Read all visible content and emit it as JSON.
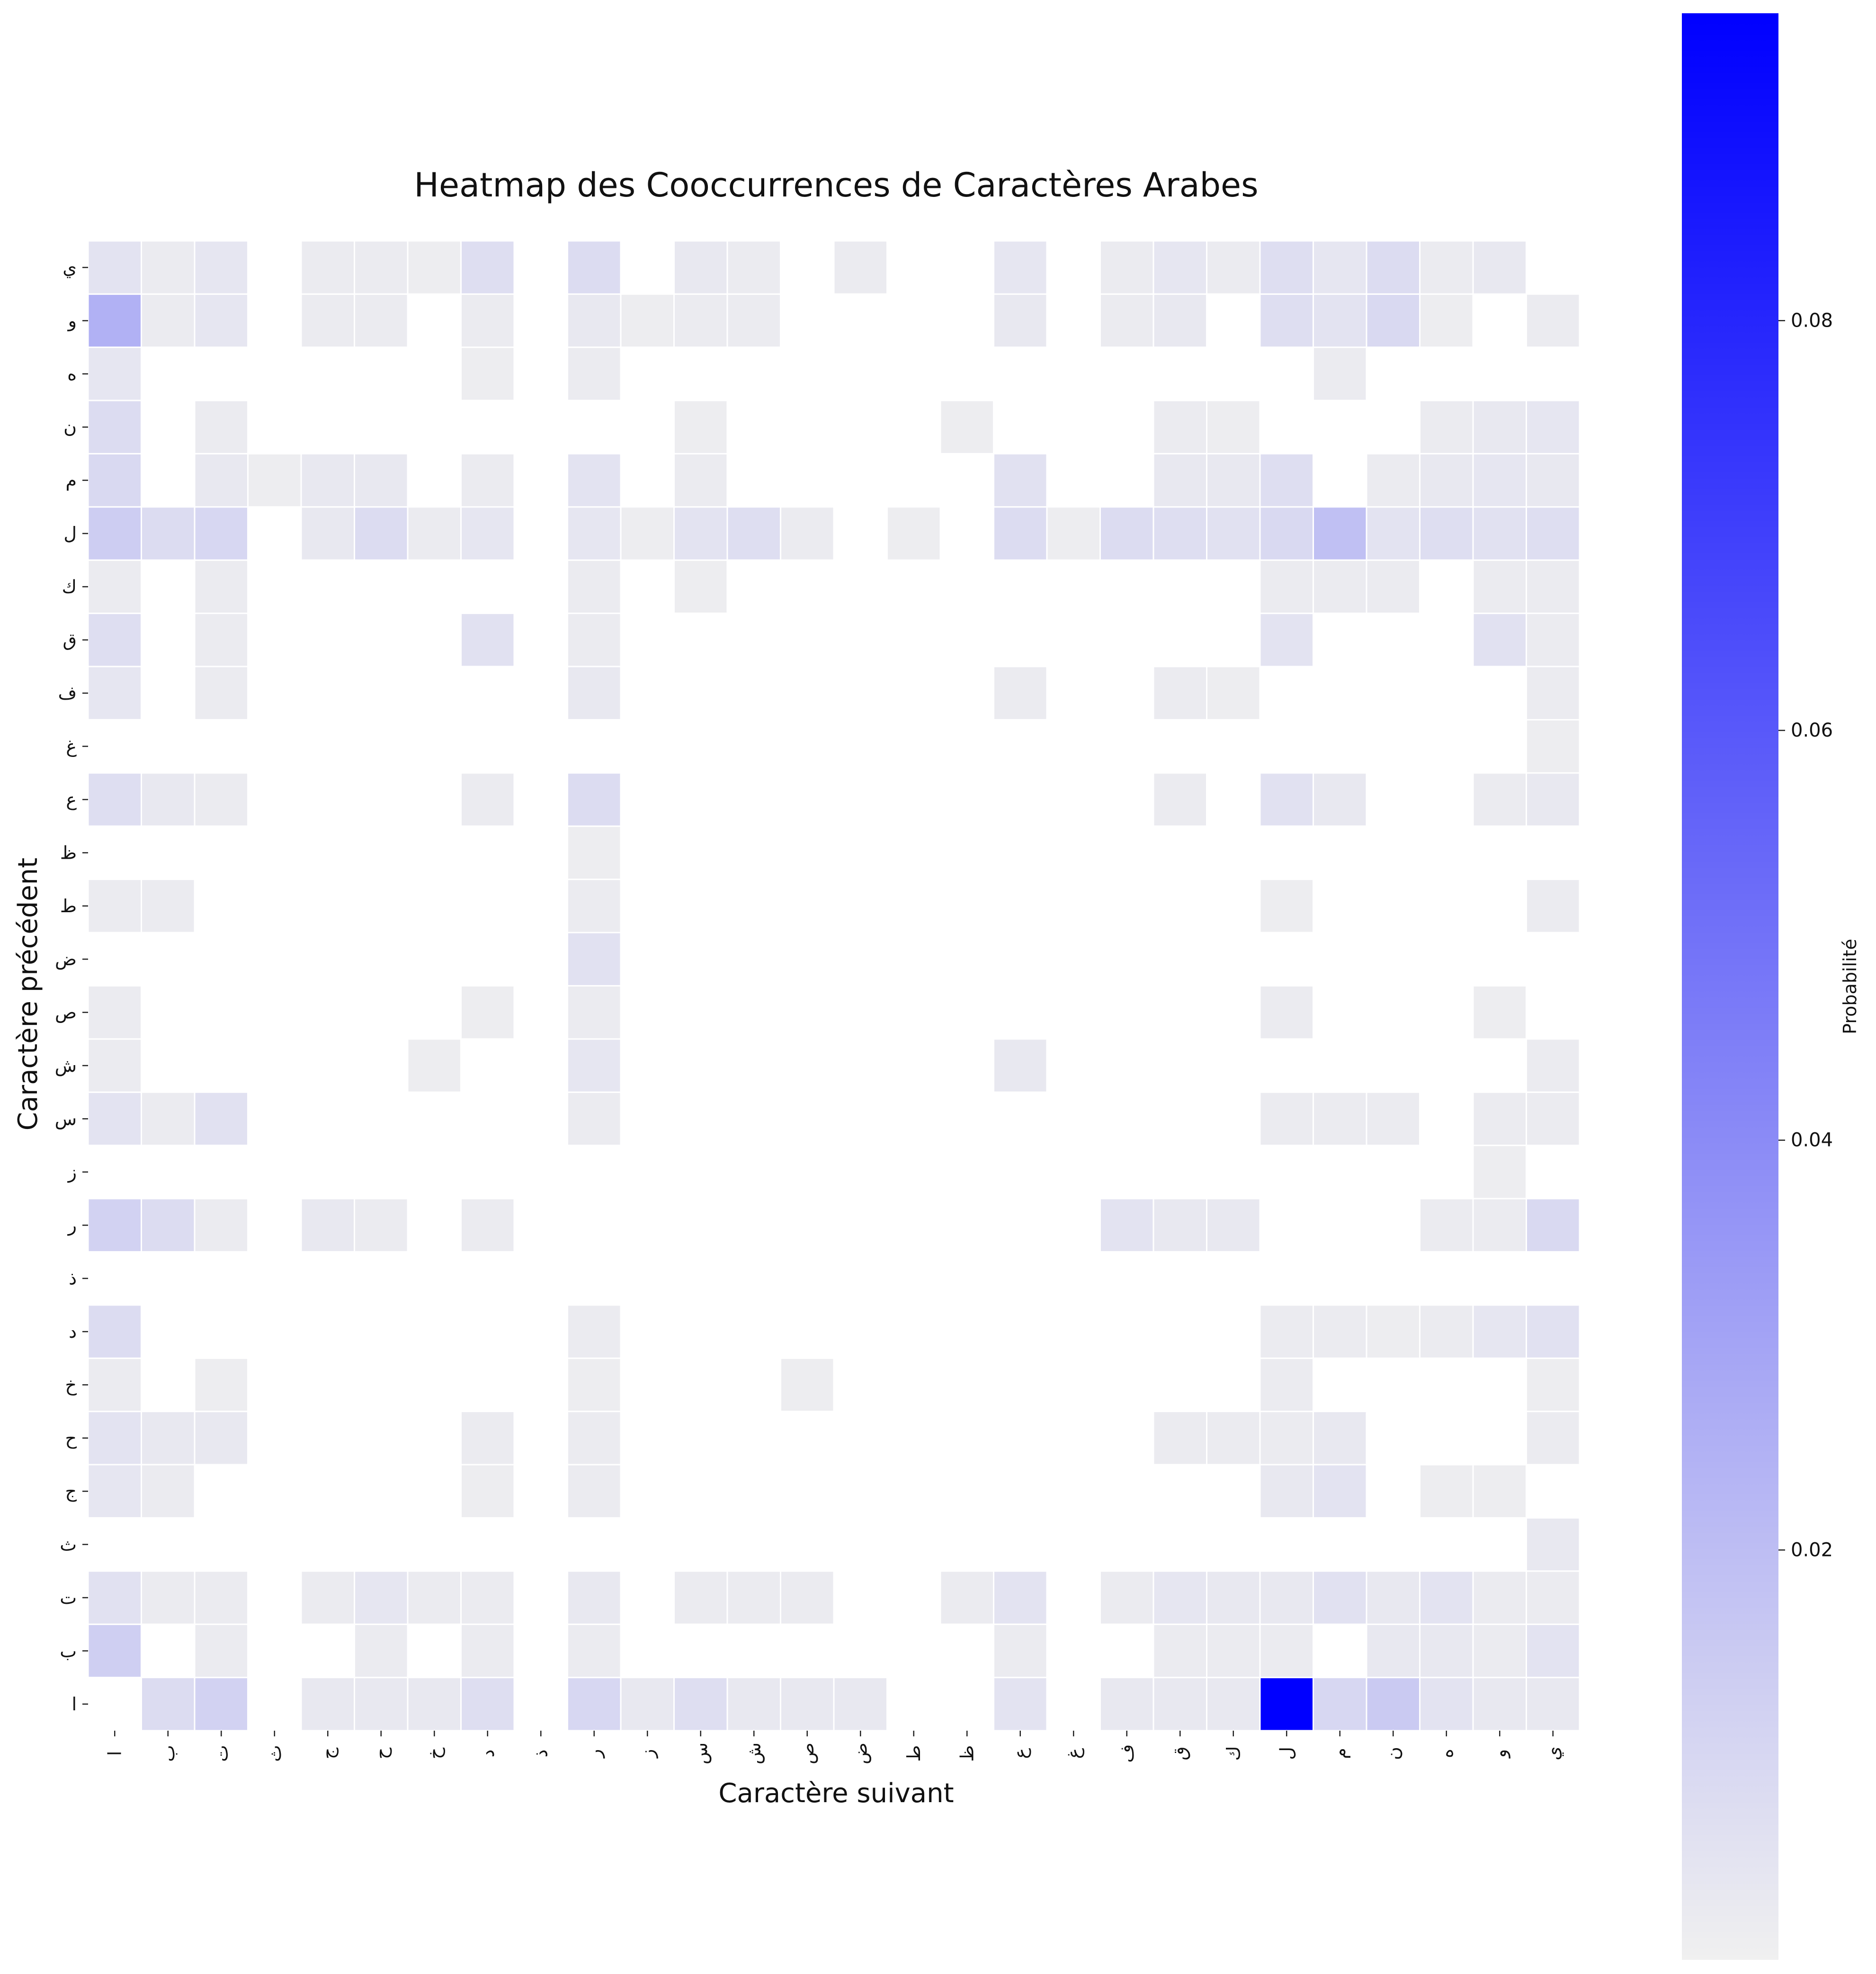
{
  "chart_data": {
    "type": "heatmap",
    "title": "Heatmap des Cooccurrences de Caractères Arabes",
    "xlabel": "Caractère suivant",
    "ylabel": "Caractère précédent",
    "x_categories": [
      "ا",
      "ب",
      "ت",
      "ث",
      "ج",
      "ح",
      "خ",
      "د",
      "ذ",
      "ر",
      "ز",
      "س",
      "ش",
      "ص",
      "ض",
      "ط",
      "ظ",
      "ع",
      "غ",
      "ف",
      "ق",
      "ك",
      "ل",
      "م",
      "ن",
      "ه",
      "و",
      "ي"
    ],
    "y_categories": [
      "ا",
      "ب",
      "ت",
      "ث",
      "ج",
      "ح",
      "خ",
      "د",
      "ذ",
      "ر",
      "ز",
      "س",
      "ش",
      "ص",
      "ض",
      "ط",
      "ظ",
      "ع",
      "غ",
      "ف",
      "ق",
      "ك",
      "ل",
      "م",
      "ن",
      "ه",
      "و",
      "ي"
    ],
    "value_note": "rows follow y_categories (bottom to top), columns follow x_categories (left to right); 0 = no cooccurrence",
    "values": [
      [
        0,
        0.008,
        0.012,
        0,
        0.003,
        0.003,
        0.003,
        0.007,
        0,
        0.01,
        0.003,
        0.007,
        0.003,
        0.003,
        0.003,
        0,
        0,
        0.005,
        0,
        0.003,
        0.003,
        0.003,
        0.095,
        0.01,
        0.015,
        0.005,
        0.003,
        0.003
      ],
      [
        0.013,
        0,
        0.002,
        0,
        0,
        0.002,
        0,
        0.002,
        0,
        0.002,
        0,
        0,
        0,
        0,
        0,
        0,
        0,
        0.002,
        0,
        0,
        0.002,
        0.002,
        0.002,
        0,
        0.003,
        0.003,
        0.002,
        0.005
      ],
      [
        0.006,
        0.002,
        0.002,
        0,
        0.002,
        0.004,
        0.002,
        0.002,
        0,
        0.003,
        0,
        0.002,
        0.002,
        0.002,
        0,
        0,
        0.002,
        0.005,
        0,
        0.002,
        0.004,
        0.003,
        0.003,
        0.006,
        0.003,
        0.005,
        0.002,
        0.002
      ],
      [
        0,
        0,
        0,
        0,
        0,
        0,
        0,
        0,
        0,
        0,
        0,
        0,
        0,
        0,
        0,
        0,
        0,
        0,
        0,
        0,
        0,
        0,
        0,
        0,
        0,
        0,
        0,
        0.003
      ],
      [
        0.004,
        0.002,
        0,
        0,
        0,
        0,
        0,
        0.001,
        0,
        0.002,
        0,
        0,
        0,
        0,
        0,
        0,
        0,
        0,
        0,
        0,
        0,
        0,
        0.003,
        0.005,
        0,
        0.001,
        0.001,
        0
      ],
      [
        0.005,
        0.003,
        0.003,
        0,
        0,
        0,
        0,
        0.002,
        0,
        0.002,
        0,
        0,
        0,
        0,
        0,
        0,
        0,
        0,
        0,
        0,
        0.002,
        0.002,
        0.002,
        0.003,
        0,
        0,
        0,
        0.002
      ],
      [
        0.002,
        0,
        0.001,
        0,
        0,
        0,
        0,
        0,
        0,
        0.001,
        0,
        0,
        0,
        0.001,
        0,
        0,
        0,
        0,
        0,
        0,
        0,
        0,
        0.002,
        0,
        0,
        0,
        0,
        0.001
      ],
      [
        0.008,
        0,
        0,
        0,
        0,
        0,
        0,
        0,
        0,
        0.002,
        0,
        0,
        0,
        0,
        0,
        0,
        0,
        0,
        0,
        0,
        0,
        0,
        0.002,
        0.002,
        0.001,
        0.002,
        0.004,
        0.006
      ],
      [
        0,
        0,
        0,
        0,
        0,
        0,
        0,
        0,
        0,
        0,
        0,
        0,
        0,
        0,
        0,
        0,
        0,
        0,
        0,
        0,
        0,
        0,
        0,
        0,
        0,
        0,
        0,
        0
      ],
      [
        0.012,
        0.008,
        0.002,
        0,
        0.003,
        0.002,
        0,
        0.002,
        0,
        0,
        0,
        0,
        0,
        0,
        0,
        0,
        0,
        0,
        0,
        0.005,
        0.003,
        0.003,
        0,
        0,
        0,
        0.002,
        0.002,
        0.009
      ],
      [
        0,
        0,
        0,
        0,
        0,
        0,
        0,
        0,
        0,
        0,
        0,
        0,
        0,
        0,
        0,
        0,
        0,
        0,
        0,
        0,
        0,
        0,
        0,
        0,
        0,
        0,
        0.001,
        0
      ],
      [
        0.005,
        0.002,
        0.006,
        0,
        0,
        0,
        0,
        0,
        0,
        0.002,
        0,
        0,
        0,
        0,
        0,
        0,
        0,
        0,
        0,
        0,
        0,
        0,
        0.002,
        0.002,
        0.002,
        0,
        0.002,
        0.002
      ],
      [
        0.002,
        0,
        0,
        0,
        0,
        0,
        0.001,
        0,
        0,
        0.004,
        0,
        0,
        0,
        0,
        0,
        0,
        0,
        0.003,
        0,
        0,
        0,
        0,
        0,
        0,
        0,
        0,
        0,
        0.002
      ],
      [
        0.002,
        0,
        0,
        0,
        0,
        0,
        0,
        0.001,
        0,
        0.002,
        0,
        0,
        0,
        0,
        0,
        0,
        0,
        0,
        0,
        0,
        0,
        0,
        0.002,
        0,
        0,
        0,
        0.001,
        0
      ],
      [
        0,
        0,
        0,
        0,
        0,
        0,
        0,
        0,
        0,
        0.006,
        0,
        0,
        0,
        0,
        0,
        0,
        0,
        0,
        0,
        0,
        0,
        0,
        0,
        0,
        0,
        0,
        0,
        0
      ],
      [
        0.002,
        0.002,
        0,
        0,
        0,
        0,
        0,
        0,
        0,
        0.002,
        0,
        0,
        0,
        0,
        0,
        0,
        0,
        0,
        0,
        0,
        0,
        0,
        0.001,
        0,
        0,
        0,
        0,
        0.002
      ],
      [
        0,
        0,
        0,
        0,
        0,
        0,
        0,
        0,
        0,
        0.001,
        0,
        0,
        0,
        0,
        0,
        0,
        0,
        0,
        0,
        0,
        0,
        0,
        0,
        0,
        0,
        0,
        0,
        0
      ],
      [
        0.007,
        0.003,
        0.002,
        0,
        0,
        0,
        0,
        0.002,
        0,
        0.008,
        0,
        0,
        0,
        0,
        0,
        0,
        0,
        0,
        0,
        0,
        0.002,
        0,
        0.006,
        0.003,
        0,
        0,
        0.002,
        0.003
      ],
      [
        0,
        0,
        0,
        0,
        0,
        0,
        0,
        0,
        0,
        0,
        0,
        0,
        0,
        0,
        0,
        0,
        0,
        0,
        0,
        0,
        0,
        0,
        0,
        0,
        0,
        0,
        0,
        0.001
      ],
      [
        0.004,
        0,
        0.002,
        0,
        0,
        0,
        0,
        0,
        0,
        0.003,
        0,
        0,
        0,
        0,
        0,
        0,
        0,
        0.002,
        0,
        0,
        0.002,
        0.001,
        0,
        0,
        0,
        0,
        0,
        0.002
      ],
      [
        0.007,
        0,
        0.002,
        0,
        0,
        0,
        0,
        0.006,
        0,
        0.002,
        0,
        0,
        0,
        0,
        0,
        0,
        0,
        0,
        0,
        0,
        0,
        0,
        0.005,
        0,
        0,
        0,
        0.006,
        0.002
      ],
      [
        0.002,
        0,
        0.002,
        0,
        0,
        0,
        0,
        0,
        0,
        0.002,
        0,
        0.001,
        0,
        0,
        0,
        0,
        0,
        0,
        0,
        0,
        0,
        0,
        0.002,
        0.002,
        0.002,
        0,
        0.002,
        0.002
      ],
      [
        0.014,
        0.008,
        0.01,
        0,
        0.003,
        0.008,
        0.002,
        0.004,
        0,
        0.004,
        0.001,
        0.005,
        0.007,
        0.002,
        0,
        0.001,
        0,
        0.008,
        0.001,
        0.008,
        0.007,
        0.006,
        0.009,
        0.019,
        0.005,
        0.007,
        0.006,
        0.007
      ],
      [
        0.009,
        0,
        0.003,
        0.001,
        0.003,
        0.003,
        0,
        0.002,
        0,
        0.005,
        0,
        0.002,
        0,
        0,
        0,
        0,
        0,
        0.006,
        0,
        0,
        0.003,
        0.003,
        0.007,
        0,
        0.002,
        0.003,
        0.004,
        0.003
      ],
      [
        0.008,
        0,
        0.002,
        0,
        0,
        0,
        0,
        0,
        0,
        0,
        0,
        0.001,
        0,
        0,
        0,
        0,
        0.001,
        0,
        0,
        0,
        0.002,
        0.001,
        0,
        0,
        0,
        0.002,
        0.003,
        0.004
      ],
      [
        0.004,
        0,
        0,
        0,
        0,
        0,
        0,
        0.001,
        0,
        0.002,
        0,
        0,
        0,
        0,
        0,
        0,
        0,
        0,
        0,
        0,
        0,
        0,
        0,
        0.002,
        0,
        0,
        0,
        0
      ],
      [
        0.025,
        0.002,
        0.004,
        0,
        0.002,
        0.002,
        0,
        0.002,
        0,
        0.003,
        0.001,
        0.002,
        0.002,
        0,
        0,
        0,
        0,
        0.003,
        0,
        0.002,
        0.003,
        0,
        0.007,
        0.005,
        0.009,
        0.001,
        0,
        0.002
      ],
      [
        0.005,
        0.002,
        0.004,
        0,
        0.002,
        0.002,
        0.001,
        0.007,
        0,
        0.008,
        0,
        0.003,
        0.002,
        0,
        0.002,
        0,
        0,
        0.004,
        0,
        0.002,
        0.004,
        0.002,
        0.007,
        0.004,
        0.008,
        0.002,
        0.003,
        0
      ]
    ],
    "colorbar": {
      "label": "Probabilité",
      "range": [
        0,
        0.095
      ],
      "ticks": [
        0.02,
        0.04,
        0.06,
        0.08
      ],
      "tick_labels": [
        "0.02",
        "0.04",
        "0.06",
        "0.08"
      ],
      "color_low": "#f0f0f0",
      "color_high": "#0000ff"
    }
  }
}
